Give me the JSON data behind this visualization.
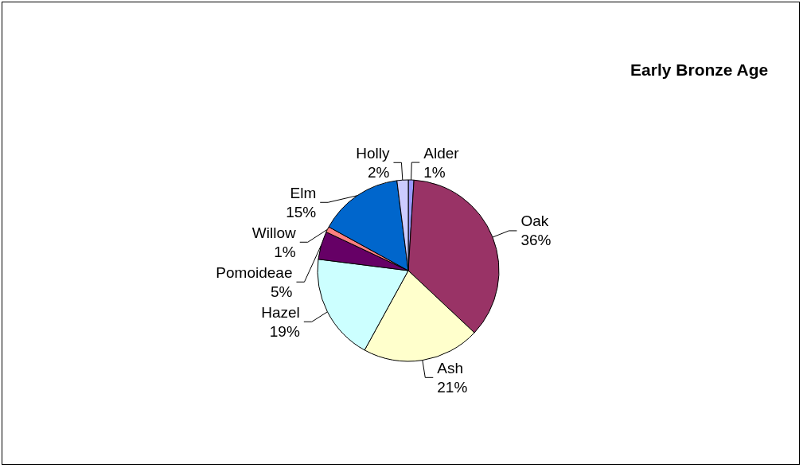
{
  "chart_data": {
    "type": "pie",
    "title": "Early Bronze Age",
    "categories": [
      "Alder",
      "Oak",
      "Ash",
      "Hazel",
      "Pomoideae",
      "Willow",
      "Elm",
      "Holly"
    ],
    "values": [
      1,
      36,
      21,
      19,
      5,
      1,
      15,
      2
    ],
    "colors": [
      "#9999ff",
      "#993366",
      "#ffffcc",
      "#ccffff",
      "#660066",
      "#ff8080",
      "#0066cc",
      "#ccccff"
    ],
    "value_labels": [
      "1%",
      "36%",
      "21%",
      "19%",
      "5%",
      "1%",
      "15%",
      "2%"
    ],
    "legend": false
  }
}
